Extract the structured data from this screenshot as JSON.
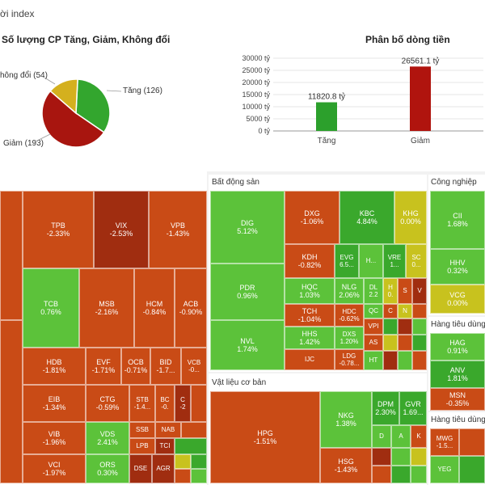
{
  "header": {
    "title_fragment": "ời index"
  },
  "pie": {
    "title": "Số lượng CP Tăng, Giảm, Không đổi",
    "labels": {
      "flat": "hông đổi (54)",
      "up": "Tăng (126)",
      "down": "Giảm (193)"
    },
    "colors": {
      "up": "#33a62e",
      "down": "#a8150f",
      "flat": "#d4b01e"
    }
  },
  "chart_data": [
    {
      "type": "pie",
      "title": "Số lượng CP Tăng, Giảm, Không đổi",
      "categories": [
        "Tăng",
        "Giảm",
        "Không đổi"
      ],
      "values": [
        126,
        193,
        54
      ]
    },
    {
      "type": "bar",
      "title": "Phân bố dòng tiền",
      "categories": [
        "Tăng",
        "Giảm"
      ],
      "values": [
        11820.8,
        26561.1
      ],
      "value_labels": [
        "11820.8 tỷ",
        "26561.1 tỷ"
      ],
      "yticks": [
        "0 tỷ",
        "5000 tỷ",
        "10000 tỷ",
        "15000 tỷ",
        "20000 tỷ",
        "25000 tỷ",
        "30000 tỷ"
      ],
      "ylim": [
        0,
        30000
      ],
      "colors": [
        "#2ca02c",
        "#b0140e"
      ]
    }
  ],
  "bar": {
    "title": "Phân bố dòng tiền"
  },
  "sectors": {
    "real_estate": "Bất động sản",
    "industry": "Công nghiệp",
    "materials": "Vật liệu cơ bản",
    "consumer1": "Hàng tiêu dùng",
    "consumer2": "Hàng tiêu dùng"
  },
  "cells": {
    "tpb": {
      "t": "TPB",
      "p": "-2.33%"
    },
    "vix": {
      "t": "VIX",
      "p": "-2.53%"
    },
    "vpb": {
      "t": "VPB",
      "p": "-1.43%"
    },
    "tcb": {
      "t": "TCB",
      "p": "0.76%"
    },
    "msb": {
      "t": "MSB",
      "p": "-2.16%"
    },
    "hcm": {
      "t": "HCM",
      "p": "-0.84%"
    },
    "acb": {
      "t": "ACB",
      "p": "-0.90%"
    },
    "hdb": {
      "t": "HDB",
      "p": "-1.81%"
    },
    "evf": {
      "t": "EVF",
      "p": "-1.71%"
    },
    "ocb": {
      "t": "OCB",
      "p": "-0.71%"
    },
    "bid": {
      "t": "BID",
      "p": "-1.7..."
    },
    "vcb": {
      "t": "VCB",
      "p": "-0..."
    },
    "eib": {
      "t": "EIB",
      "p": "-1.34%"
    },
    "ctg": {
      "t": "CTG",
      "p": "-0.59%"
    },
    "stb": {
      "t": "STB",
      "p": "-1.4..."
    },
    "bc": {
      "t": "BC",
      "p": "-0."
    },
    "c": {
      "t": "C",
      "p": "-2"
    },
    "vib": {
      "t": "VIB",
      "p": "-1.96%"
    },
    "vds": {
      "t": "VDS",
      "p": "2.41%"
    },
    "ssb": {
      "t": "SSB",
      "p": ""
    },
    "nab": {
      "t": "NAB",
      "p": ""
    },
    "vci": {
      "t": "VCI",
      "p": "-1.97%"
    },
    "lpb": {
      "t": "LPB",
      "p": ""
    },
    "tci": {
      "t": "TCI",
      "p": ""
    },
    "ors": {
      "t": "ORS",
      "p": "0.30%"
    },
    "dse": {
      "t": "DSE",
      "p": ""
    },
    "agr": {
      "t": "AGR",
      "p": ""
    },
    "dig": {
      "t": "DIG",
      "p": "5.12%"
    },
    "dxg": {
      "t": "DXG",
      "p": "-1.06%"
    },
    "kbc": {
      "t": "KBC",
      "p": "4.84%"
    },
    "khg": {
      "t": "KHG",
      "p": "0.00%"
    },
    "kdh": {
      "t": "KDH",
      "p": "-0.82%"
    },
    "evg": {
      "t": "EVG",
      "p": "6.5..."
    },
    "h": {
      "t": "H...",
      "p": ""
    },
    "vre": {
      "t": "VRE",
      "p": "1..."
    },
    "sc": {
      "t": "SC",
      "p": "0..."
    },
    "pdr": {
      "t": "PDR",
      "p": "0.96%"
    },
    "hqc": {
      "t": "HQC",
      "p": "1.03%"
    },
    "nlg": {
      "t": "NLG",
      "p": "2.06%"
    },
    "dl": {
      "t": "DL",
      "p": "2.2"
    },
    "h2": {
      "t": "H",
      "p": "0."
    },
    "s": {
      "t": "S",
      "p": ""
    },
    "v": {
      "t": "V",
      "p": ""
    },
    "tch": {
      "t": "TCH",
      "p": "-1.04%"
    },
    "hdc": {
      "t": "HDC",
      "p": "-0.62%"
    },
    "qc": {
      "t": "QC",
      "p": ""
    },
    "c2": {
      "t": "C",
      "p": ""
    },
    "n": {
      "t": "N",
      "p": ""
    },
    "nvl": {
      "t": "NVL",
      "p": "1.74%"
    },
    "hhs": {
      "t": "HHS",
      "p": "1.42%"
    },
    "dxs": {
      "t": "DXS",
      "p": "1.20%"
    },
    "vpi": {
      "t": "VPI",
      "p": ""
    },
    "as": {
      "t": "AS",
      "p": ""
    },
    "ijc": {
      "t": "IJC",
      "p": ""
    },
    "ldg": {
      "t": "LDG",
      "p": "-0.78..."
    },
    "ht": {
      "t": "HT",
      "p": ""
    },
    "cii": {
      "t": "CII",
      "p": "1.68%"
    },
    "hhv": {
      "t": "HHV",
      "p": "0.32%"
    },
    "vcg": {
      "t": "VCG",
      "p": "0.00%"
    },
    "hpg": {
      "t": "HPG",
      "p": "-1.51%"
    },
    "nkg": {
      "t": "NKG",
      "p": "1.38%"
    },
    "dpm": {
      "t": "DPM",
      "p": "2.30%"
    },
    "gvr": {
      "t": "GVR",
      "p": "1.69..."
    },
    "d": {
      "t": "D",
      "p": ""
    },
    "a": {
      "t": "A",
      "p": ""
    },
    "k": {
      "t": "K",
      "p": ""
    },
    "hsg": {
      "t": "HSG",
      "p": "-1.43%"
    },
    "hag": {
      "t": "HAG",
      "p": "0.91%"
    },
    "anv": {
      "t": "ANV",
      "p": "1.81%"
    },
    "msn": {
      "t": "MSN",
      "p": "-0.35%"
    },
    "mwg": {
      "t": "MWG",
      "p": "-1.5..."
    },
    "yeg": {
      "t": "YEG",
      "p": ""
    }
  }
}
